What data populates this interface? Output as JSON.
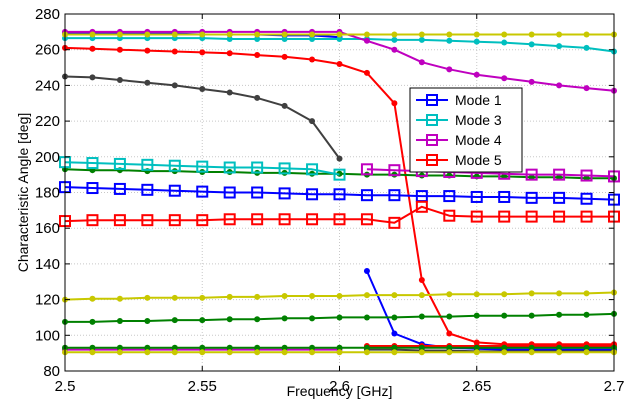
{
  "chart_data": {
    "type": "line",
    "title": "",
    "xlabel": "Frequency [GHz]",
    "ylabel": "Characteristic Angle [deg]",
    "xlim": [
      2.5,
      2.7
    ],
    "ylim": [
      80,
      280
    ],
    "xticks": [
      "2.5",
      "2.55",
      "2.6",
      "2.65",
      "2.7"
    ],
    "yticks": [
      "80",
      "100",
      "120",
      "140",
      "160",
      "180",
      "200",
      "220",
      "240",
      "260",
      "280"
    ],
    "grid": true,
    "legend_position": "upper-right inside plot",
    "legend": [
      "Mode 1",
      "Mode 3",
      "Mode 4",
      "Mode 5"
    ],
    "series": [
      {
        "name": "Mode 1",
        "color": "#0000ff",
        "marker": "square",
        "x": [
          2.5,
          2.51,
          2.52,
          2.53,
          2.54,
          2.55,
          2.56,
          2.57,
          2.58,
          2.59,
          2.6,
          2.61,
          2.62,
          2.63,
          2.64,
          2.65,
          2.66,
          2.67,
          2.68,
          2.69,
          2.7
        ],
        "y": [
          183,
          182.5,
          182,
          181.5,
          181,
          180.5,
          180,
          180,
          179.5,
          179,
          179,
          178.5,
          178.5,
          178,
          178,
          177.5,
          177.5,
          177,
          177,
          176.5,
          176
        ]
      },
      {
        "name": "Mode 3",
        "color": "#00bfbf",
        "marker": "square",
        "x": [
          2.5,
          2.51,
          2.52,
          2.53,
          2.54,
          2.55,
          2.56,
          2.57,
          2.58,
          2.59,
          2.6
        ],
        "y": [
          197,
          196.5,
          196,
          195.5,
          195,
          194.5,
          194,
          194,
          193.5,
          193,
          190
        ]
      },
      {
        "name": "Mode 4",
        "color": "#bf00bf",
        "marker": "square",
        "x": [
          2.61,
          2.62,
          2.63,
          2.64,
          2.65,
          2.66,
          2.67,
          2.68,
          2.69,
          2.7
        ],
        "y": [
          193,
          192.5,
          192,
          191.5,
          191,
          190.5,
          190,
          190,
          189.5,
          189
        ]
      },
      {
        "name": "Mode 5",
        "color": "#ff0000",
        "marker": "square",
        "x": [
          2.5,
          2.51,
          2.52,
          2.53,
          2.54,
          2.55,
          2.56,
          2.57,
          2.58,
          2.59,
          2.6,
          2.61,
          2.62,
          2.63,
          2.64,
          2.65,
          2.66,
          2.67,
          2.68,
          2.69,
          2.7
        ],
        "y": [
          164,
          164.5,
          164.5,
          164.5,
          164.5,
          164.5,
          165,
          165,
          165,
          165,
          165,
          165,
          163,
          172,
          167,
          166.5,
          166.5,
          166.5,
          166.5,
          166.5,
          166.5
        ]
      },
      {
        "name": "",
        "color": "#0000ff",
        "marker": "dot",
        "x": [
          2.61,
          2.62,
          2.63,
          2.64,
          2.65,
          2.66,
          2.67,
          2.68,
          2.69,
          2.7
        ],
        "y": [
          136,
          101,
          95,
          93,
          92.5,
          92,
          92,
          92,
          92,
          92
        ]
      },
      {
        "name": "",
        "color": "#0000ff",
        "marker": "dot",
        "x": [
          2.5,
          2.51,
          2.52,
          2.53,
          2.54,
          2.55,
          2.56,
          2.57,
          2.58,
          2.59,
          2.6
        ],
        "y": [
          269.5,
          269.5,
          269,
          269,
          269,
          268.5,
          268.5,
          268.5,
          268,
          268,
          267
        ]
      },
      {
        "name": "",
        "color": "#00bfbf",
        "marker": "dot",
        "x": [
          2.5,
          2.51,
          2.52,
          2.53,
          2.54,
          2.55,
          2.56,
          2.57,
          2.58,
          2.59,
          2.6,
          2.61,
          2.62,
          2.63,
          2.64,
          2.65,
          2.66,
          2.67,
          2.68,
          2.69,
          2.7
        ],
        "y": [
          266.5,
          266.5,
          266.5,
          266.5,
          266.5,
          266.5,
          266,
          266,
          266,
          266,
          266,
          266,
          265.5,
          265.5,
          265,
          264.5,
          264,
          263,
          262,
          261,
          259
        ]
      },
      {
        "name": "",
        "color": "#bf00bf",
        "marker": "dot",
        "x": [
          2.5,
          2.51,
          2.52,
          2.53,
          2.54,
          2.55,
          2.56,
          2.57,
          2.58,
          2.59,
          2.6,
          2.61,
          2.62,
          2.63,
          2.64,
          2.65,
          2.66,
          2.67,
          2.68,
          2.69,
          2.7
        ],
        "y": [
          270,
          270,
          270,
          270,
          270,
          270,
          270,
          270,
          270,
          270,
          270,
          265,
          260,
          253,
          249,
          246,
          244,
          242,
          240,
          238.5,
          237
        ]
      },
      {
        "name": "",
        "color": "#bf00bf",
        "marker": "dot",
        "x": [
          2.5,
          2.51,
          2.52,
          2.53,
          2.54,
          2.55,
          2.56,
          2.57,
          2.58,
          2.59,
          2.6
        ],
        "y": [
          92,
          92,
          92,
          92,
          92,
          92,
          92,
          92,
          92,
          92,
          92
        ]
      },
      {
        "name": "",
        "color": "#ff0000",
        "marker": "dot",
        "x": [
          2.5,
          2.51,
          2.52,
          2.53,
          2.54,
          2.55,
          2.56,
          2.57,
          2.58,
          2.59,
          2.6,
          2.61,
          2.62,
          2.63,
          2.64,
          2.65,
          2.66,
          2.67,
          2.68,
          2.69,
          2.7
        ],
        "y": [
          261,
          260.5,
          260,
          259.5,
          259,
          258.5,
          258,
          257,
          256,
          254.5,
          252,
          247,
          230,
          131,
          101,
          96,
          95,
          95,
          95,
          95,
          95
        ]
      },
      {
        "name": "",
        "color": "#ff0000",
        "marker": "dot",
        "x": [
          2.61,
          2.62,
          2.63,
          2.64,
          2.65,
          2.66,
          2.67,
          2.68,
          2.69,
          2.7
        ],
        "y": [
          94,
          94,
          94,
          94,
          94,
          94,
          94,
          94,
          94,
          94
        ]
      },
      {
        "name": "",
        "color": "#404040",
        "marker": "dot",
        "x": [
          2.5,
          2.51,
          2.52,
          2.53,
          2.54,
          2.55,
          2.56,
          2.57,
          2.58,
          2.59,
          2.6
        ],
        "y": [
          245,
          244.5,
          243,
          241.5,
          240,
          238,
          236,
          233,
          228.5,
          220,
          199
        ]
      },
      {
        "name": "",
        "color": "#404040",
        "marker": "dot",
        "x": [
          2.61,
          2.62,
          2.63,
          2.64,
          2.65,
          2.66,
          2.67,
          2.68,
          2.69,
          2.7
        ],
        "y": [
          92,
          92,
          91.5,
          91.5,
          91,
          91,
          91,
          91,
          91,
          91
        ]
      },
      {
        "name": "",
        "color": "#008000",
        "marker": "dot",
        "x": [
          2.5,
          2.51,
          2.52,
          2.53,
          2.54,
          2.55,
          2.56,
          2.57,
          2.58,
          2.59,
          2.6,
          2.61,
          2.62,
          2.63,
          2.64,
          2.65,
          2.66,
          2.67,
          2.68,
          2.69,
          2.7
        ],
        "y": [
          193,
          192.5,
          192.5,
          192,
          192,
          191.5,
          191.5,
          191,
          191,
          190.5,
          190.5,
          190,
          190,
          189.5,
          189.5,
          189,
          189,
          188.5,
          188.5,
          188,
          188
        ]
      },
      {
        "name": "",
        "color": "#008000",
        "marker": "dot",
        "x": [
          2.5,
          2.51,
          2.52,
          2.53,
          2.54,
          2.55,
          2.56,
          2.57,
          2.58,
          2.59,
          2.6,
          2.61,
          2.62,
          2.63,
          2.64,
          2.65,
          2.66,
          2.67,
          2.68,
          2.69,
          2.7
        ],
        "y": [
          107.5,
          107.5,
          108,
          108,
          108.5,
          108.5,
          109,
          109,
          109.5,
          109.5,
          110,
          110,
          110,
          110.5,
          110.5,
          111,
          111,
          111,
          111.5,
          111.5,
          112
        ]
      },
      {
        "name": "",
        "color": "#008000",
        "marker": "dot",
        "x": [
          2.5,
          2.51,
          2.52,
          2.53,
          2.54,
          2.55,
          2.56,
          2.57,
          2.58,
          2.59,
          2.6,
          2.61,
          2.62,
          2.63,
          2.64,
          2.65,
          2.66,
          2.67,
          2.68,
          2.69,
          2.7
        ],
        "y": [
          93,
          93,
          93,
          93,
          93,
          93,
          93,
          93,
          93,
          93,
          93,
          93,
          93,
          93,
          93,
          93,
          93,
          93,
          93,
          93,
          93
        ]
      },
      {
        "name": "",
        "color": "#c8c800",
        "marker": "dot",
        "x": [
          2.5,
          2.51,
          2.52,
          2.53,
          2.54,
          2.55,
          2.56,
          2.57,
          2.58,
          2.59,
          2.6,
          2.61,
          2.62,
          2.63,
          2.64,
          2.65,
          2.66,
          2.67,
          2.68,
          2.69,
          2.7
        ],
        "y": [
          120,
          120.5,
          120.5,
          121,
          121,
          121,
          121.5,
          121.5,
          122,
          122,
          122,
          122.5,
          122.5,
          122.5,
          123,
          123,
          123,
          123.5,
          123.5,
          123.5,
          124
        ]
      },
      {
        "name": "",
        "color": "#c8c800",
        "marker": "dot",
        "x": [
          2.5,
          2.51,
          2.52,
          2.53,
          2.54,
          2.55,
          2.56,
          2.57,
          2.58,
          2.59,
          2.6,
          2.61,
          2.62,
          2.63,
          2.64,
          2.65,
          2.66,
          2.67,
          2.68,
          2.69,
          2.7
        ],
        "y": [
          90.5,
          90.5,
          90.5,
          90.5,
          90.5,
          90.5,
          90.5,
          90.5,
          90.5,
          90.5,
          90.5,
          90.5,
          90.5,
          90.5,
          90.5,
          90.5,
          90.5,
          90.5,
          90.5,
          90.5,
          90.5
        ]
      },
      {
        "name": "",
        "color": "#c8c800",
        "marker": "dot",
        "x": [
          2.5,
          2.51,
          2.52,
          2.53,
          2.54,
          2.55,
          2.56,
          2.57,
          2.58,
          2.59,
          2.6,
          2.61,
          2.62,
          2.63,
          2.64,
          2.65,
          2.66,
          2.67,
          2.68,
          2.69,
          2.7
        ],
        "y": [
          268.5,
          268.5,
          268.5,
          268.5,
          268.5,
          268.5,
          268.5,
          268.5,
          268.5,
          268.5,
          268.5,
          268.5,
          268.5,
          268.5,
          268.5,
          268.5,
          268.5,
          268.5,
          268.5,
          268.5,
          268.5
        ]
      }
    ]
  }
}
